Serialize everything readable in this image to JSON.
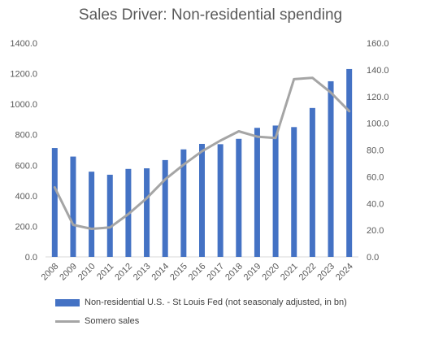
{
  "chart_data": {
    "type": "bar+line",
    "title": "Sales Driver: Non-residential spending",
    "categories": [
      "2008",
      "2009",
      "2010",
      "2011",
      "2012",
      "2013",
      "2014",
      "2015",
      "2016",
      "2017",
      "2018",
      "2019",
      "2020",
      "2021",
      "2022",
      "2023",
      "2024"
    ],
    "series": [
      {
        "name": "Non-residential U.S. - St Louis Fed (not seasonaly adjusted, in bn)",
        "type": "bar",
        "axis": "left",
        "color": "#4472C4",
        "values": [
          713,
          657,
          558,
          538,
          576,
          580,
          634,
          704,
          740,
          738,
          773,
          845,
          860,
          850,
          975,
          1150,
          1230
        ]
      },
      {
        "name": "Somero sales",
        "type": "line",
        "axis": "right",
        "color": "#A5A5A5",
        "values": [
          52,
          24,
          21,
          22,
          32,
          44,
          58,
          69,
          79,
          87,
          94,
          90,
          89,
          133,
          134,
          123,
          109
        ]
      }
    ],
    "y_left": {
      "min": 0,
      "max": 1400,
      "step": 200,
      "tick_labels": [
        "0.0",
        "200.0",
        "400.0",
        "600.0",
        "800.0",
        "1000.0",
        "1200.0",
        "1400.0"
      ]
    },
    "y_right": {
      "min": 0,
      "max": 160,
      "step": 20,
      "tick_labels": [
        "0.0",
        "20.0",
        "40.0",
        "60.0",
        "80.0",
        "100.0",
        "120.0",
        "140.0",
        "160.0"
      ]
    },
    "grid": false,
    "legend_position": "bottom"
  }
}
